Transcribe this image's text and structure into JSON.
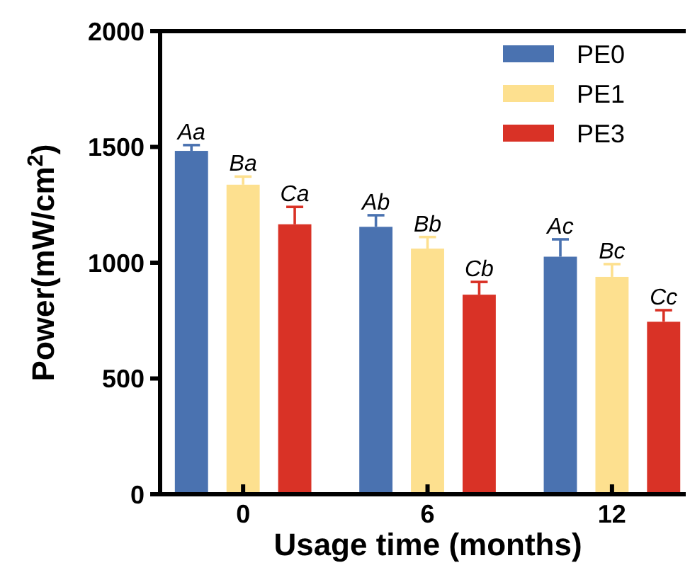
{
  "chart_data": {
    "type": "bar",
    "xlabel": "Usage time (months)",
    "ylabel": "Power(mW/cm$^{2}$)",
    "categories": [
      "0",
      "6",
      "12"
    ],
    "series": [
      {
        "name": "PE0",
        "color": "#4a72b0",
        "values": [
          1483,
          1155,
          1026
        ],
        "errors": [
          25,
          50,
          75
        ]
      },
      {
        "name": "PE1",
        "color": "#fde08f",
        "values": [
          1337,
          1061,
          939
        ],
        "errors": [
          35,
          50,
          55
        ]
      },
      {
        "name": "PE3",
        "color": "#d93226",
        "values": [
          1166,
          862,
          745
        ],
        "errors": [
          75,
          55,
          50
        ]
      }
    ],
    "ylim": [
      0,
      2000
    ],
    "yticks": [
      0,
      500,
      1000,
      1500,
      2000
    ],
    "grid": false,
    "legend": "top right",
    "annotations": [
      "Aa",
      "Ba",
      "Ca",
      "Ab",
      "Bb",
      "Cb",
      "Ac",
      "Bc",
      "Cc"
    ]
  }
}
